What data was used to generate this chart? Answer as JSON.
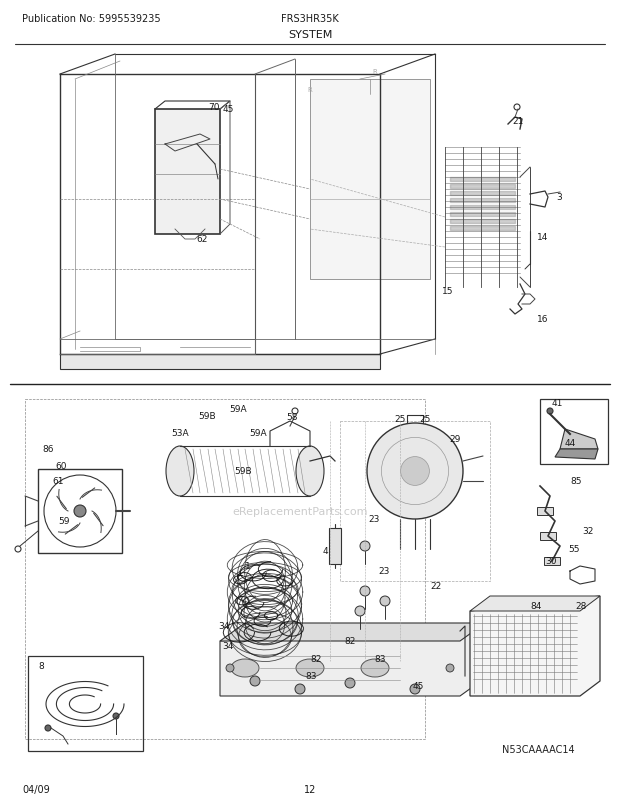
{
  "pub_no": "Publication No: 5995539235",
  "model": "FRS3HR35K",
  "section": "SYSTEM",
  "date": "04/09",
  "page": "12",
  "diagram_id": "N53CAAAAC14",
  "bg_color": "#ffffff",
  "text_color": "#1a1a1a",
  "line_color": "#333333",
  "header_font_size": 7.5,
  "title_font_size": 8.5,
  "footer_font_size": 7.5,
  "label_font_size": 6.5
}
